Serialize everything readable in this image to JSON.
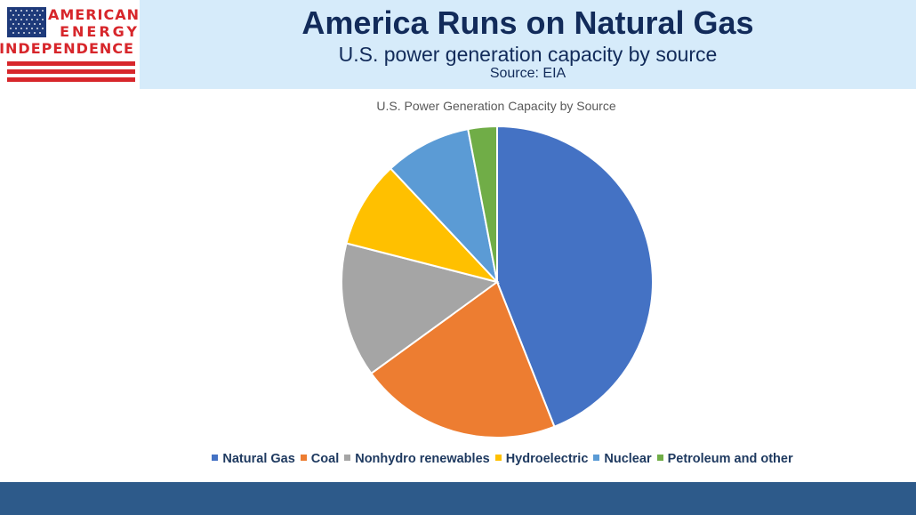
{
  "logo": {
    "line1": "AMERICAN",
    "line2": "ENERGY",
    "line3": "INDEPENDENCE",
    "flag_icon": "us-flag-icon",
    "colors": {
      "red": "#d7262b",
      "blue": "#1e3a7a"
    }
  },
  "header": {
    "title": "America Runs on Natural Gas",
    "subtitle": "U.S. power generation capacity by source",
    "source": "Source: EIA"
  },
  "chart_data": {
    "type": "pie",
    "title": "U.S. Power Generation Capacity by Source",
    "legend_position": "bottom",
    "categories": [
      "Natural Gas",
      "Coal",
      "Nonhydro renewables",
      "Hydroelectric",
      "Nuclear",
      "Petroleum and other"
    ],
    "values": [
      44,
      21,
      14,
      9,
      9,
      3
    ],
    "unit": "%",
    "colors": [
      "#4472c4",
      "#ed7d31",
      "#a5a5a5",
      "#ffc000",
      "#5b9bd5",
      "#70ad47"
    ]
  }
}
